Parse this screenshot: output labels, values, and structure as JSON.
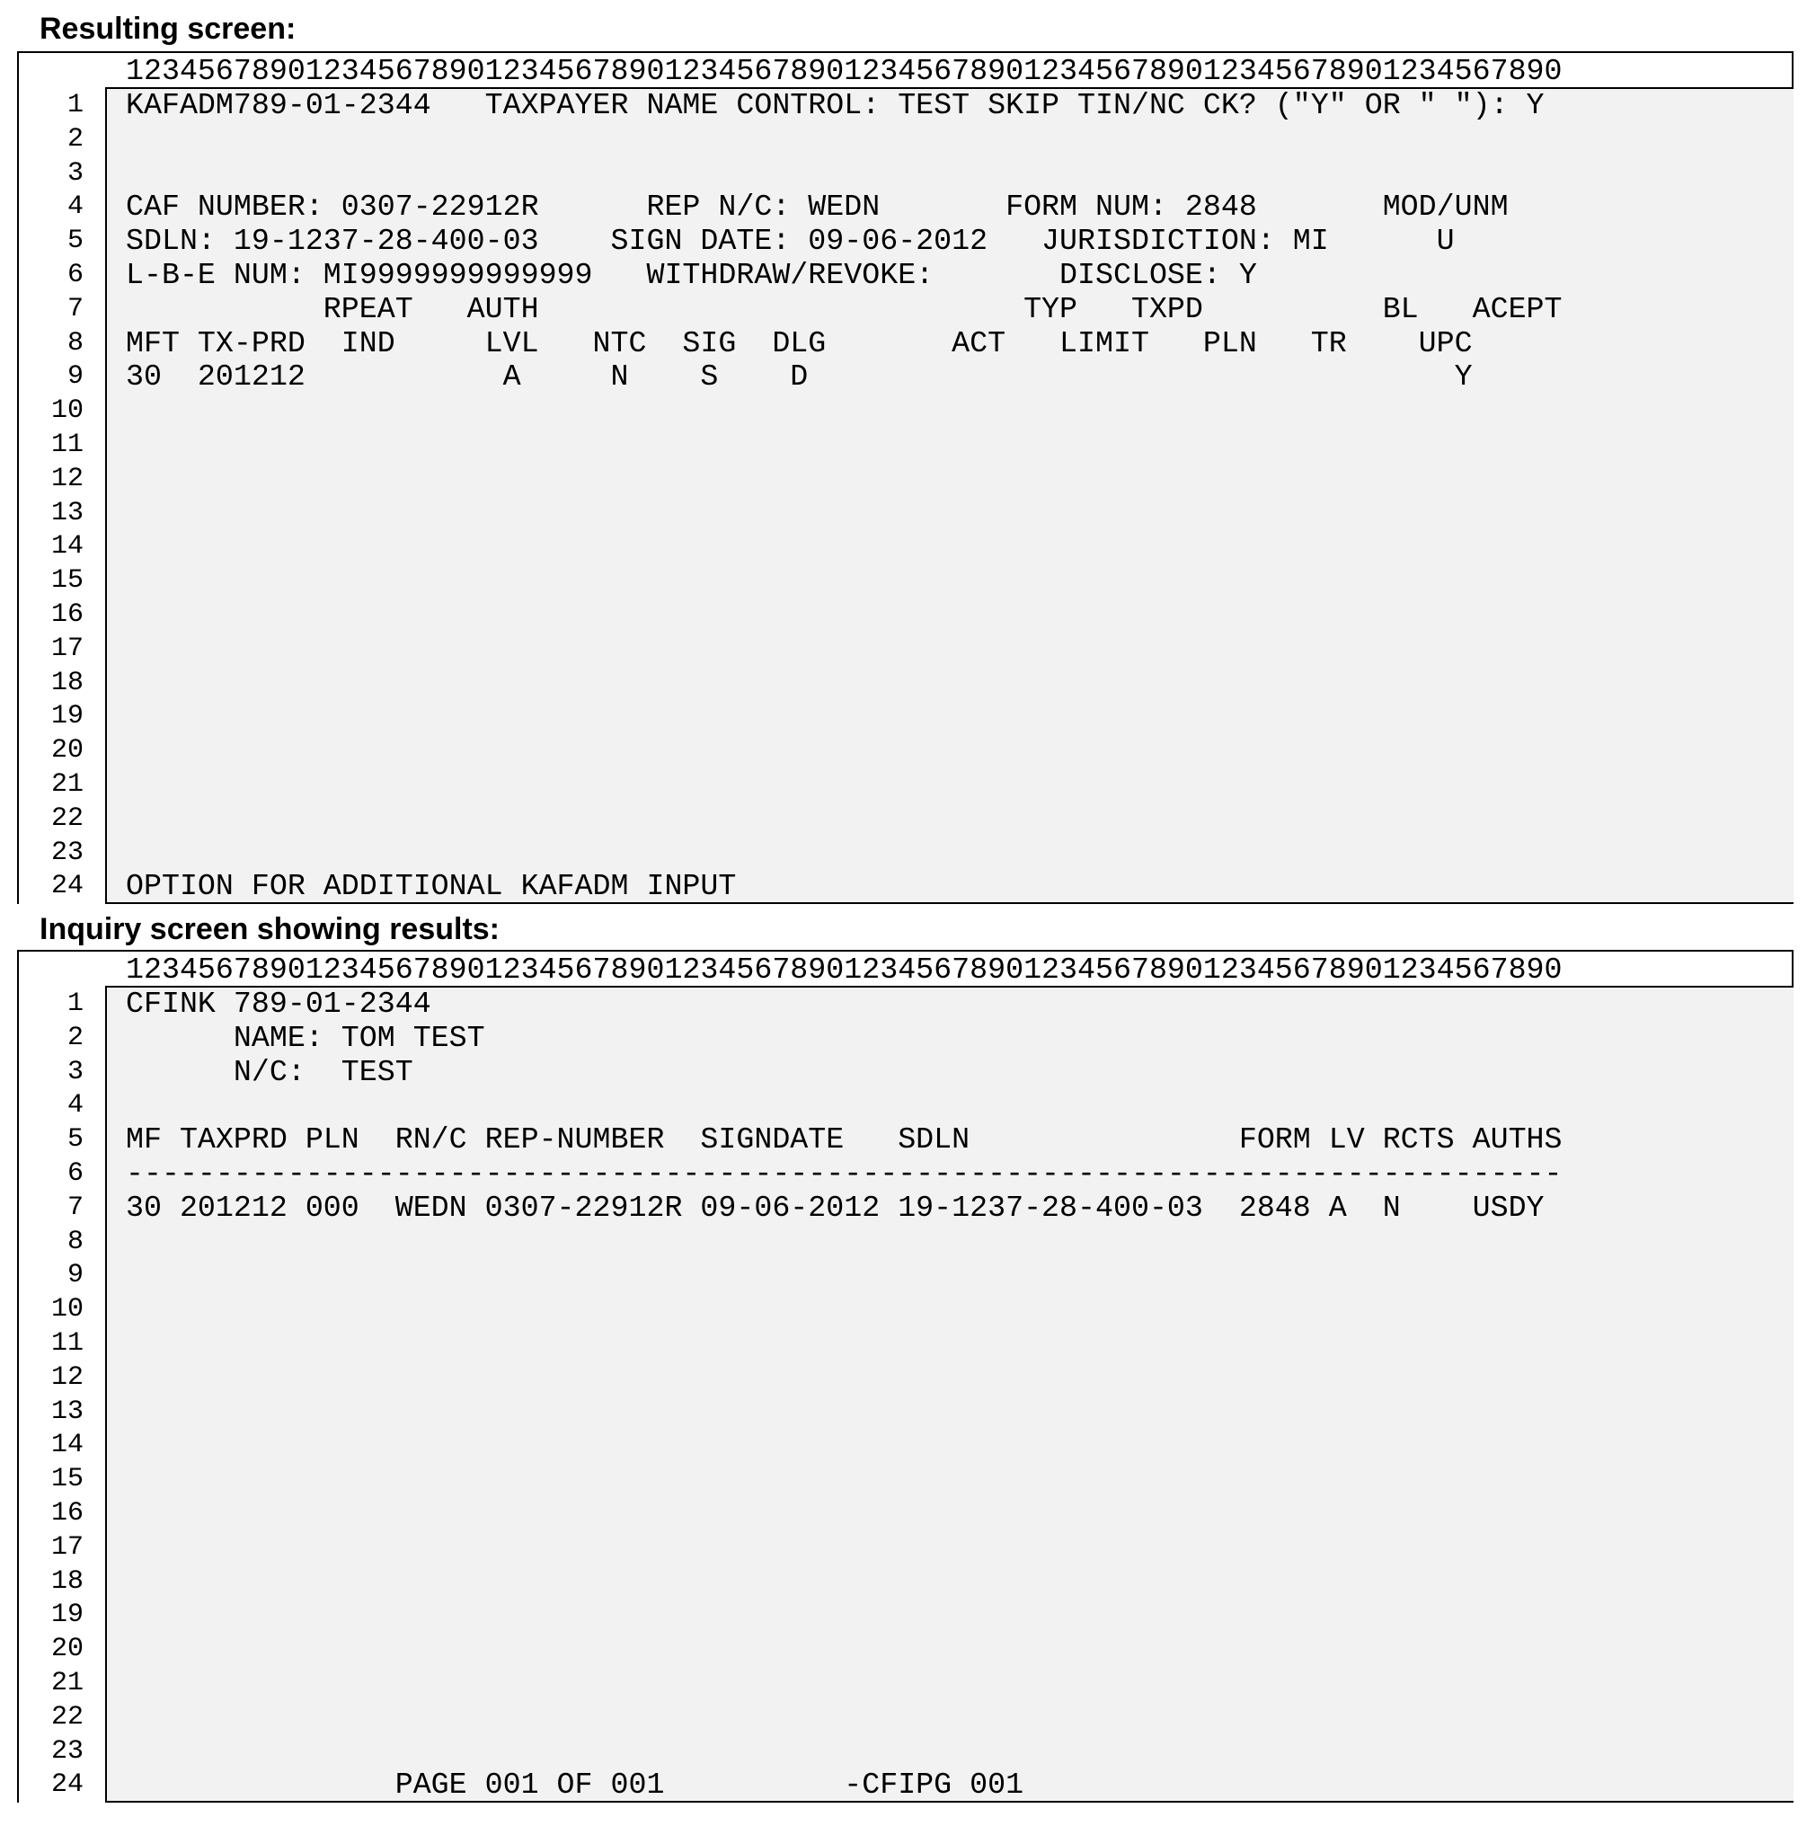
{
  "screens": [
    {
      "title": "Resulting screen:",
      "ruler": "12345678901234567890123456789012345678901234567890123456789012345678901234567890",
      "lines": [
        "KAFADM789-01-2344   TAXPAYER NAME CONTROL: TEST SKIP TIN/NC CK? (\"Y\" OR \" \"): Y",
        "",
        "",
        "CAF NUMBER: 0307-22912R      REP N/C: WEDN       FORM NUM: 2848       MOD/UNM",
        "SDLN: 19-1237-28-400-03    SIGN DATE: 09-06-2012   JURISDICTION: MI      U",
        "L-B-E NUM: MI9999999999999   WITHDRAW/REVOKE:       DISCLOSE: Y",
        "           RPEAT   AUTH                           TYP   TXPD          BL   ACEPT",
        "MFT TX-PRD  IND     LVL   NTC  SIG  DLG       ACT   LIMIT   PLN   TR    UPC",
        "30  201212           A     N    S    D                                    Y",
        "",
        "",
        "",
        "",
        "",
        "",
        "",
        "",
        "",
        "",
        "",
        "",
        "",
        "",
        "OPTION FOR ADDITIONAL KAFADM INPUT"
      ]
    },
    {
      "title": "Inquiry screen showing results:",
      "ruler": "12345678901234567890123456789012345678901234567890123456789012345678901234567890",
      "lines": [
        "CFINK 789-01-2344",
        "      NAME: TOM TEST",
        "      N/C:  TEST",
        "",
        "MF TAXPRD PLN  RN/C REP-NUMBER  SIGNDATE   SDLN               FORM LV RCTS AUTHS",
        "--------------------------------------------------------------------------------",
        "30 201212 000  WEDN 0307-22912R 09-06-2012 19-1237-28-400-03  2848 A  N    USDY",
        "",
        "",
        "",
        "",
        "",
        "",
        "",
        "",
        "",
        "",
        "",
        "",
        "",
        "",
        "",
        "",
        "               PAGE 001 OF 001          -CFIPG 001"
      ]
    }
  ]
}
